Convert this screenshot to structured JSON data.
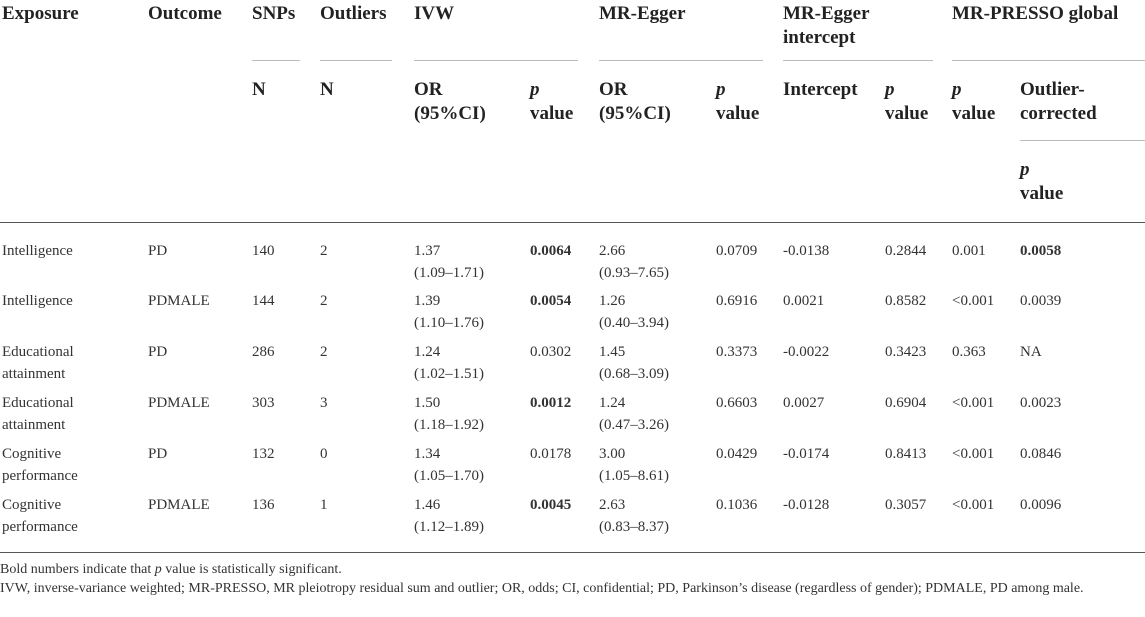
{
  "header": {
    "exposure": "Exposure",
    "outcome": "Outcome",
    "snps": "SNPs",
    "outliers": "Outliers",
    "ivw": "IVW",
    "mr_egger": "MR-Egger",
    "mr_egger_intercept": "MR-Egger intercept",
    "mr_presso_global": "MR-PRESSO global",
    "n": "N",
    "n2": "N",
    "or_ci": "OR (95%CI)",
    "p_value": "p value",
    "or_ci2": "OR (95%CI)",
    "p_value2": "p value",
    "intercept": "Intercept",
    "p_value3": "p value",
    "p_value4": "p value",
    "outlier_corrected": "Outlier-corrected",
    "p_value5": "p value"
  },
  "rows": [
    {
      "exposure": "Intelligence",
      "outcome": "PD",
      "snps": "140",
      "outliers": "2",
      "ivw_or": "1.37",
      "ivw_ci": "(1.09–1.71)",
      "ivw_p": "0.0064",
      "ivw_p_bold": true,
      "egger_or": "2.66",
      "egger_ci": "(0.93–7.65)",
      "egger_p": "0.0709",
      "intercept": "-0.0138",
      "intercept_p": "0.2844",
      "presso_p": "0.001",
      "corrected_p": "0.0058",
      "corrected_bold": true
    },
    {
      "exposure": "Intelligence",
      "outcome": "PDMALE",
      "snps": "144",
      "outliers": "2",
      "ivw_or": "1.39",
      "ivw_ci": "(1.10–1.76)",
      "ivw_p": "0.0054",
      "ivw_p_bold": true,
      "egger_or": "1.26",
      "egger_ci": "(0.40–3.94)",
      "egger_p": "0.6916",
      "intercept": "0.0021",
      "intercept_p": "0.8582",
      "presso_p": "<0.001",
      "corrected_p": "0.0039",
      "corrected_bold": false
    },
    {
      "exposure": "Educational attainment",
      "outcome": "PD",
      "snps": "286",
      "outliers": "2",
      "ivw_or": "1.24",
      "ivw_ci": "(1.02–1.51)",
      "ivw_p": "0.0302",
      "ivw_p_bold": false,
      "egger_or": "1.45",
      "egger_ci": "(0.68–3.09)",
      "egger_p": "0.3373",
      "intercept": "-0.0022",
      "intercept_p": "0.3423",
      "presso_p": "0.363",
      "corrected_p": "NA",
      "corrected_bold": false
    },
    {
      "exposure": "Educational attainment",
      "outcome": "PDMALE",
      "snps": "303",
      "outliers": "3",
      "ivw_or": "1.50",
      "ivw_ci": "(1.18–1.92)",
      "ivw_p": "0.0012",
      "ivw_p_bold": true,
      "egger_or": "1.24",
      "egger_ci": "(0.47–3.26)",
      "egger_p": "0.6603",
      "intercept": "0.0027",
      "intercept_p": "0.6904",
      "presso_p": "<0.001",
      "corrected_p": "0.0023",
      "corrected_bold": false
    },
    {
      "exposure": "Cognitive performance",
      "outcome": "PD",
      "snps": "132",
      "outliers": "0",
      "ivw_or": "1.34",
      "ivw_ci": "(1.05–1.70)",
      "ivw_p": "0.0178",
      "ivw_p_bold": false,
      "egger_or": "3.00",
      "egger_ci": "(1.05–8.61)",
      "egger_p": "0.0429",
      "intercept": "-0.0174",
      "intercept_p": "0.8413",
      "presso_p": "<0.001",
      "corrected_p": "0.0846",
      "corrected_bold": false
    },
    {
      "exposure": "Cognitive performance",
      "outcome": "PDMALE",
      "snps": "136",
      "outliers": "1",
      "ivw_or": "1.46",
      "ivw_ci": "(1.12–1.89)",
      "ivw_p": "0.0045",
      "ivw_p_bold": true,
      "egger_or": "2.63",
      "egger_ci": "(0.83–8.37)",
      "egger_p": "0.1036",
      "intercept": "-0.0128",
      "intercept_p": "0.3057",
      "presso_p": "<0.001",
      "corrected_p": "0.0096",
      "corrected_bold": false
    }
  ],
  "notes": {
    "line1": "Bold numbers indicate that p value is statistically significant.",
    "line2": "IVW, inverse-variance weighted; MR-PRESSO, MR pleiotropy residual sum and outlier; OR, odds; CI, confidential; PD, Parkinson’s disease (regardless of gender); PDMALE, PD among male."
  }
}
